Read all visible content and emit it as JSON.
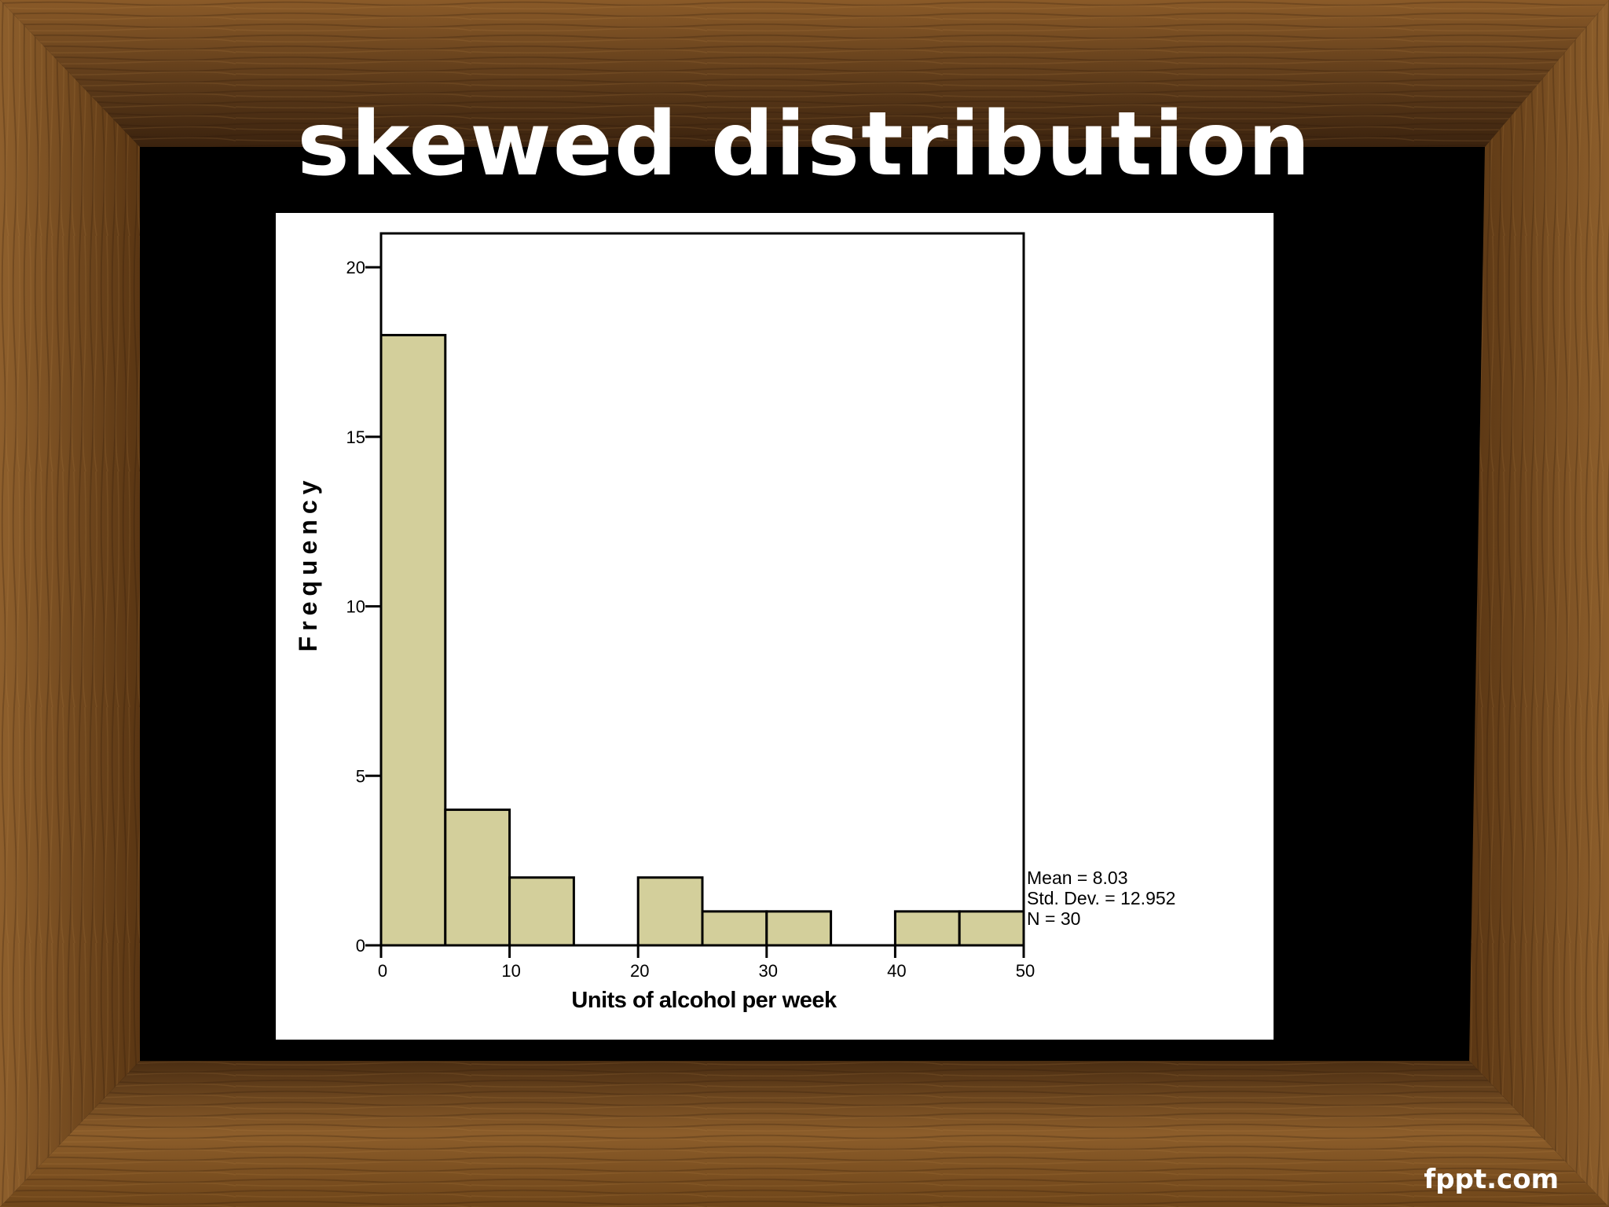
{
  "slide": {
    "title": "skewed distribution",
    "watermark": "fppt.com"
  },
  "colors": {
    "bar_fill": "#d3cf9b",
    "bar_stroke": "#000000",
    "frame_dark": "#3d2410",
    "frame_mid": "#7a4e22",
    "frame_light": "#9b6a33",
    "background": "#000000",
    "panel": "#ffffff"
  },
  "chart_data": {
    "type": "bar",
    "subtype": "histogram",
    "xlabel": "Units of alcohol per week",
    "ylabel": "Frequency",
    "xlim": [
      0,
      50
    ],
    "ylim": [
      0,
      21
    ],
    "bin_width": 5,
    "bins": [
      {
        "x0": 0,
        "x1": 5,
        "count": 18
      },
      {
        "x0": 5,
        "x1": 10,
        "count": 4
      },
      {
        "x0": 10,
        "x1": 15,
        "count": 2
      },
      {
        "x0": 15,
        "x1": 20,
        "count": 0
      },
      {
        "x0": 20,
        "x1": 25,
        "count": 2
      },
      {
        "x0": 25,
        "x1": 30,
        "count": 1
      },
      {
        "x0": 30,
        "x1": 35,
        "count": 1
      },
      {
        "x0": 35,
        "x1": 40,
        "count": 0
      },
      {
        "x0": 40,
        "x1": 45,
        "count": 1
      },
      {
        "x0": 45,
        "x1": 50,
        "count": 1
      }
    ],
    "x_ticks": [
      0,
      10,
      20,
      30,
      40,
      50
    ],
    "y_ticks": [
      0,
      5,
      10,
      15,
      20
    ],
    "stats": [
      "Mean = 8.03",
      "Std. Dev. = 12.952",
      "N = 30"
    ],
    "grid": false,
    "legend": "none"
  }
}
